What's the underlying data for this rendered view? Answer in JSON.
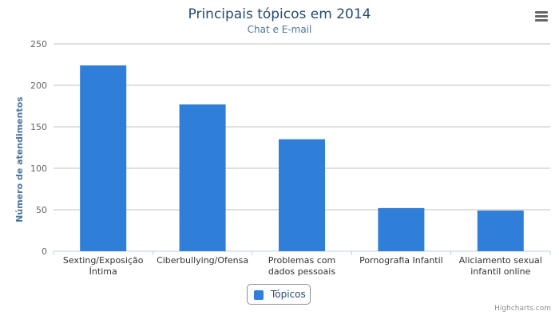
{
  "chart_data": {
    "type": "bar",
    "title": "Principais tópicos em 2014",
    "subtitle": "Chat e E-mail",
    "ylabel": "Número de atendimentos",
    "xlabel": "",
    "categories": [
      [
        "Sexting/Exposição",
        "Íntima"
      ],
      [
        "Ciberbullying/Ofensa"
      ],
      [
        "Problemas com",
        "dados pessoais"
      ],
      [
        "Pornografia Infantil"
      ],
      [
        "Aliciamento sexual",
        "infantil online"
      ]
    ],
    "series": [
      {
        "name": "Tópicos",
        "values": [
          224,
          177,
          135,
          52,
          49
        ],
        "color": "#2f7ed8"
      }
    ],
    "ylim": [
      0,
      250
    ],
    "yticks": [
      0,
      50,
      100,
      150,
      200,
      250
    ],
    "grid": true,
    "legend_position": "bottom-center"
  },
  "credits": "Highcharts.com",
  "icons": {
    "menu": "hamburger-menu-icon"
  },
  "colors": {
    "title": "#274b6d",
    "subtitle": "#4d759e",
    "axis_title": "#4d759e",
    "gridline": "#c0c0c0",
    "axis_line": "#c0d0e0",
    "series": "#2f7ed8"
  }
}
